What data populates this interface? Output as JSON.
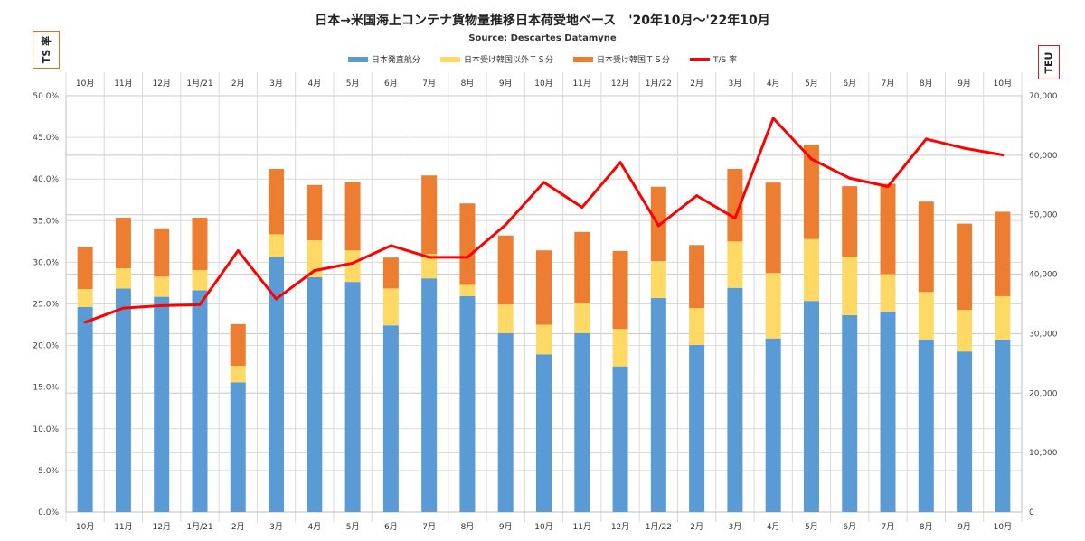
{
  "chart_data": {
    "type": "bar",
    "stacked": true,
    "title": "日本→米国海上コンテナ貨物量推移日本荷受地ベース　'20年10月～'22年10月",
    "subtitle": "Source: Descartes Datamyne",
    "ylabel_left": "TS 率",
    "ylabel_right": "TEU",
    "categories": [
      "10月",
      "11月",
      "12月",
      "1月/21",
      "2月",
      "3月",
      "4月",
      "5月",
      "6月",
      "7月",
      "8月",
      "9月",
      "10月",
      "11月",
      "12月",
      "1月/22",
      "2月",
      "3月",
      "4月",
      "5月",
      "6月",
      "7月",
      "8月",
      "9月",
      "10月"
    ],
    "series": [
      {
        "name": "日本発直航分",
        "color": "#5b9bd5",
        "axis": "right",
        "values": [
          34500,
          37600,
          36200,
          37300,
          21800,
          42900,
          39500,
          38700,
          31400,
          39300,
          36300,
          30100,
          26500,
          30100,
          24500,
          36000,
          28100,
          37700,
          29200,
          35500,
          33100,
          33700,
          29000,
          27000,
          29000
        ]
      },
      {
        "name": "日本受け韓国以外ＴＳ分",
        "color": "#ffd965",
        "axis": "right",
        "values": [
          3000,
          3400,
          3400,
          3400,
          2800,
          3800,
          6200,
          5300,
          6200,
          4100,
          1900,
          4800,
          5000,
          5000,
          6300,
          6200,
          6200,
          7800,
          11000,
          10400,
          9800,
          6300,
          8000,
          7000,
          7300
        ]
      },
      {
        "name": "日本受け韓国ＴＳ分",
        "color": "#ed7d31",
        "axis": "right",
        "values": [
          7100,
          8500,
          8100,
          8800,
          7000,
          11000,
          9300,
          11500,
          5200,
          13200,
          13700,
          11600,
          12500,
          12000,
          13100,
          12500,
          10600,
          12200,
          15200,
          15900,
          11900,
          15200,
          15200,
          14500,
          14200
        ]
      },
      {
        "name": "T/S 率",
        "color": "#ff0000",
        "axis": "left",
        "type": "line",
        "values": [
          22.8,
          24.5,
          24.8,
          24.9,
          31.4,
          25.6,
          29.0,
          29.9,
          32.0,
          30.6,
          30.6,
          34.5,
          39.6,
          36.6,
          42.0,
          34.4,
          38.0,
          35.3,
          47.3,
          42.4,
          40.1,
          39.1,
          44.8,
          43.7,
          42.9
        ]
      }
    ],
    "ylim_left": [
      0,
      50
    ],
    "yticks_left": [
      "0.0%",
      "5.0%",
      "10.0%",
      "15.0%",
      "20.0%",
      "25.0%",
      "30.0%",
      "35.0%",
      "40.0%",
      "45.0%",
      "50.0%"
    ],
    "ylim_right": [
      0,
      70000
    ],
    "yticks_right": [
      "0",
      "10,000",
      "20,000",
      "30,000",
      "40,000",
      "50,000",
      "60,000",
      "70,000"
    ],
    "grid": true,
    "legend_position": "top"
  }
}
